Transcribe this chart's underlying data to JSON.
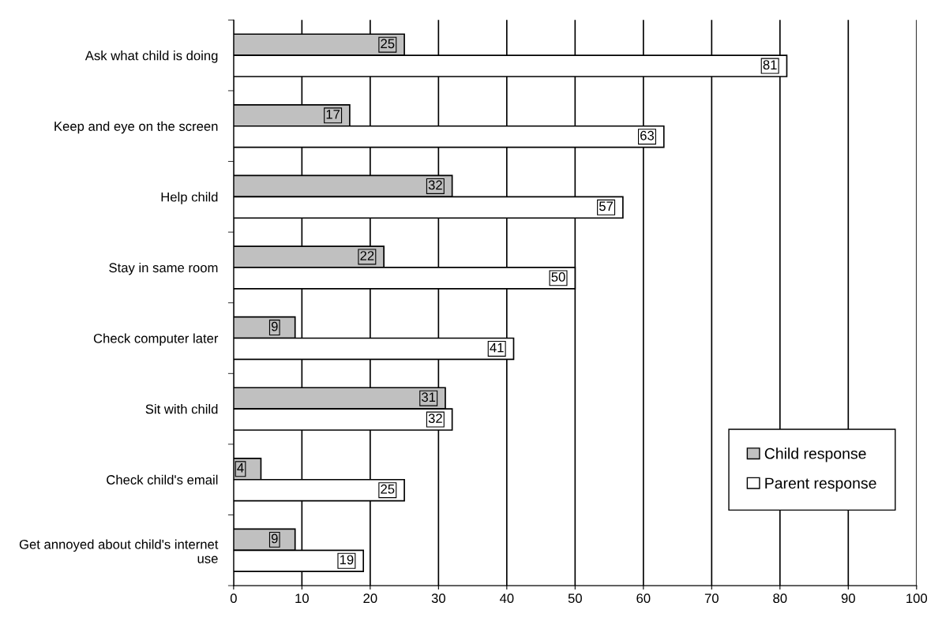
{
  "chart_data": {
    "type": "bar",
    "orientation": "horizontal",
    "categories": [
      "Ask what child is doing",
      "Keep and eye on the screen",
      "Help child",
      "Stay in same room",
      "Check computer later",
      "Sit with child",
      "Check child's email",
      "Get annoyed about child's internet use"
    ],
    "series": [
      {
        "name": "Child response",
        "color": "#c0c0c0",
        "values": [
          25,
          17,
          32,
          22,
          9,
          31,
          4,
          9
        ]
      },
      {
        "name": "Parent response",
        "color": "#ffffff",
        "values": [
          81,
          63,
          57,
          50,
          41,
          32,
          25,
          19
        ]
      }
    ],
    "xlim": [
      0,
      100
    ],
    "xticks": [
      0,
      10,
      20,
      30,
      40,
      50,
      60,
      70,
      80,
      90,
      100
    ],
    "grid": "x",
    "legend": "bottom right",
    "data_labels": true
  }
}
